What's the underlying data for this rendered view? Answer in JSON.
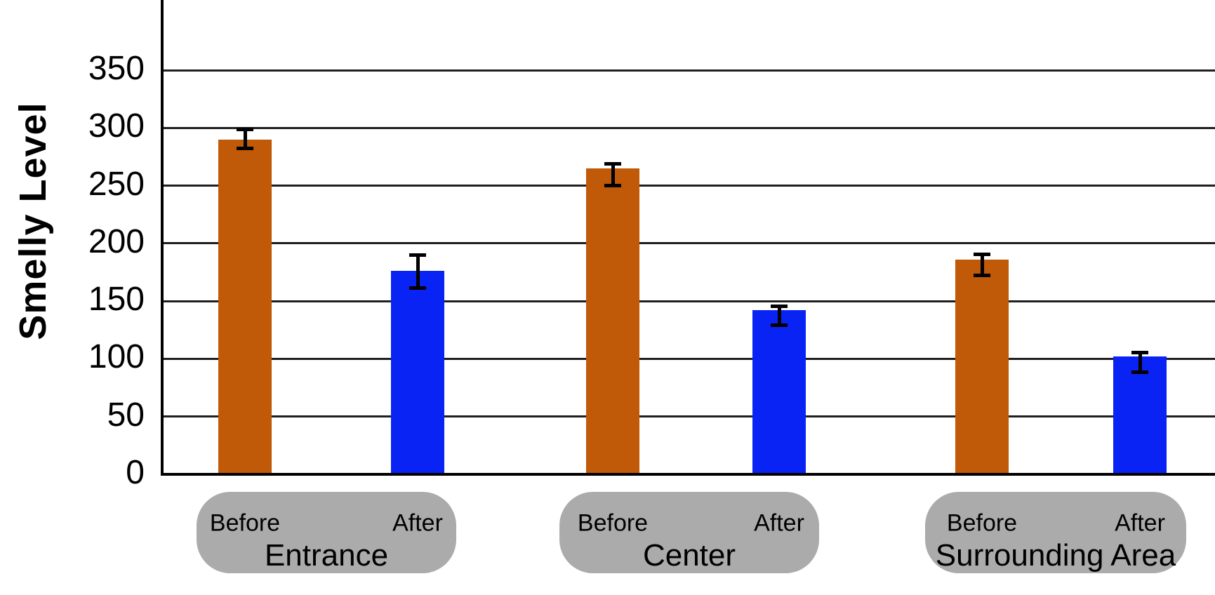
{
  "chart_data": {
    "type": "bar",
    "title": "",
    "ylabel": "Smelly Level",
    "xlabel": "",
    "yticks": [
      0,
      50,
      100,
      150,
      200,
      250,
      300,
      350
    ],
    "ylim": [
      0,
      410
    ],
    "grid": "horizontal",
    "legend_position": "labels-below-axis-in-gray-pills",
    "error_bars": true,
    "series_names": [
      "Before",
      "After"
    ],
    "categories": [
      "Entrance",
      "Center",
      "Surrounding Area"
    ],
    "colors": {
      "before_bar": "#C05A08",
      "after_bar": "#0A23F5",
      "pill_background": "#ABABAB",
      "gridline": "#1F1F1F",
      "axis": "#000000",
      "text": "#000000"
    },
    "groups": [
      {
        "label": "Entrance",
        "bars": [
          {
            "name": "Before",
            "value": 290,
            "err_high": 299,
            "err_low": 282
          },
          {
            "name": "After",
            "value": 176,
            "err_high": 190,
            "err_low": 161
          }
        ]
      },
      {
        "label": "Center",
        "bars": [
          {
            "name": "Before",
            "value": 265,
            "err_high": 269,
            "err_low": 250
          },
          {
            "name": "After",
            "value": 142,
            "err_high": 146,
            "err_low": 129
          }
        ]
      },
      {
        "label": "Surrounding Area",
        "bars": [
          {
            "name": "Before",
            "value": 186,
            "err_high": 191,
            "err_low": 172
          },
          {
            "name": "After",
            "value": 102,
            "err_high": 106,
            "err_low": 88
          }
        ]
      }
    ]
  }
}
